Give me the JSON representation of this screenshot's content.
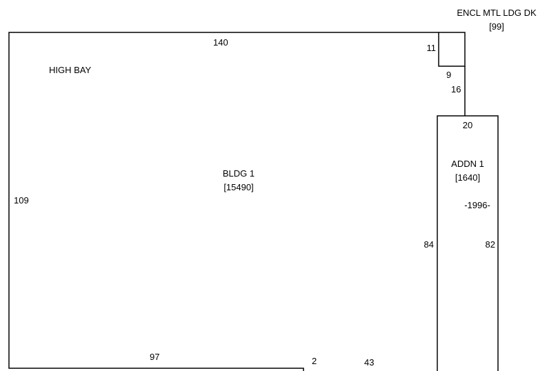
{
  "sketch": {
    "buildings": {
      "bldg1": {
        "name": "BLDG 1",
        "area": "[15490]",
        "note": "HIGH BAY",
        "dim_top": "140",
        "dim_left": "109",
        "dim_bottom": "97",
        "dim_right": "84",
        "dim_step": "2",
        "dim_notch": "43"
      },
      "addn1": {
        "name": "ADDN 1",
        "area": "[1640]",
        "year": "-1996-",
        "dim_top": "20",
        "dim_right": "82"
      },
      "encl": {
        "name": "ENCL MTL LDG DK",
        "area": "[99]",
        "dim_left": "11",
        "dim_bottom": "9",
        "dim_connector": "16"
      }
    },
    "colors": {
      "line": "#000000",
      "background": "#ffffff"
    }
  }
}
